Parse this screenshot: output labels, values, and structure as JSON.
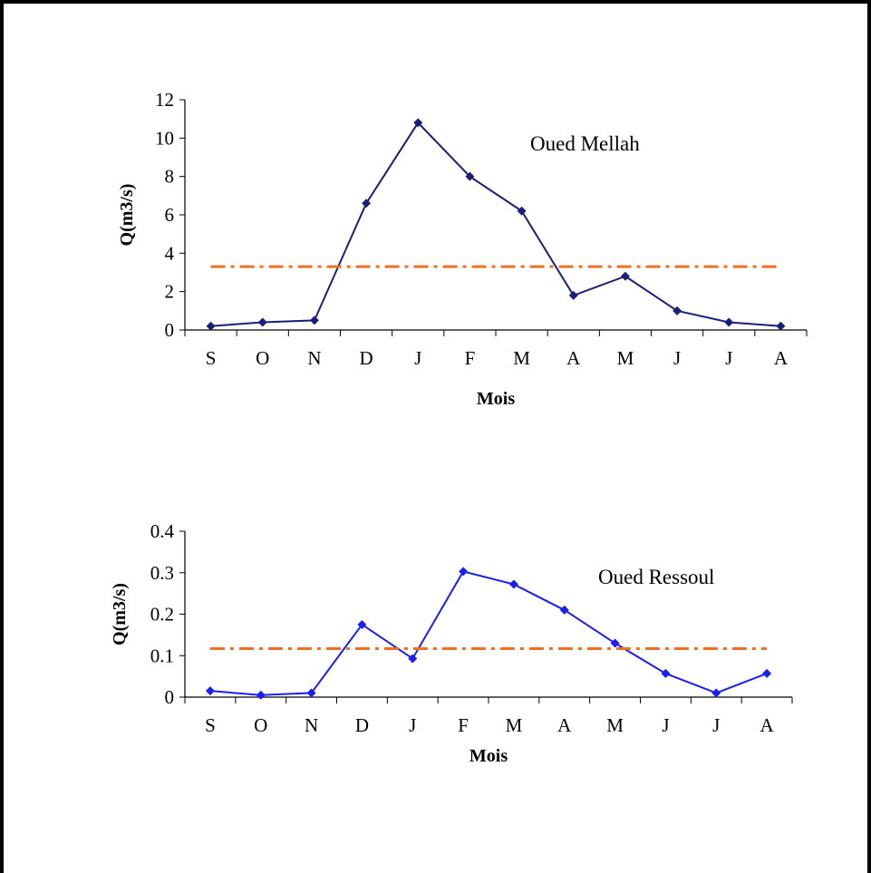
{
  "chart_data": [
    {
      "type": "line",
      "title": "Oued Mellah",
      "xlabel": "Mois",
      "ylabel": "Q(m3/s)",
      "categories": [
        "S",
        "O",
        "N",
        "D",
        "J",
        "F",
        "M",
        "A",
        "M",
        "J",
        "J",
        "A"
      ],
      "ylim": [
        0,
        12
      ],
      "yticks": [
        "0",
        "2",
        "4",
        "6",
        "8",
        "10",
        "12"
      ],
      "series": [
        {
          "values": [
            0.2,
            0.4,
            0.5,
            6.6,
            10.8,
            8.0,
            6.2,
            1.8,
            2.8,
            1.0,
            0.4,
            0.2
          ],
          "color": "#1a1f7a",
          "marker": "diamond"
        },
        {
          "values": [
            3.3,
            3.3,
            3.3,
            3.3,
            3.3,
            3.3,
            3.3,
            3.3,
            3.3,
            3.3,
            3.3,
            3.3
          ],
          "color": "#f07020",
          "style": "dash-dot"
        }
      ],
      "grid": false
    },
    {
      "type": "line",
      "title": "Oued Ressoul",
      "xlabel": "Mois",
      "ylabel": "Q(m3/s)",
      "categories": [
        "S",
        "O",
        "N",
        "D",
        "J",
        "F",
        "M",
        "A",
        "M",
        "J",
        "J",
        "A"
      ],
      "ylim": [
        0,
        0.4
      ],
      "yticks": [
        "0",
        "0.1",
        "0.2",
        "0.3",
        "0.4"
      ],
      "series": [
        {
          "values": [
            0.015,
            0.005,
            0.01,
            0.175,
            0.093,
            0.303,
            0.272,
            0.21,
            0.13,
            0.057,
            0.01,
            0.057
          ],
          "color": "#1a1ff0",
          "marker": "diamond"
        },
        {
          "values": [
            0.117,
            0.117,
            0.117,
            0.117,
            0.117,
            0.117,
            0.117,
            0.117,
            0.117,
            0.117,
            0.117,
            0.117
          ],
          "color": "#f07020",
          "style": "dash-dot"
        }
      ],
      "grid": false
    }
  ]
}
